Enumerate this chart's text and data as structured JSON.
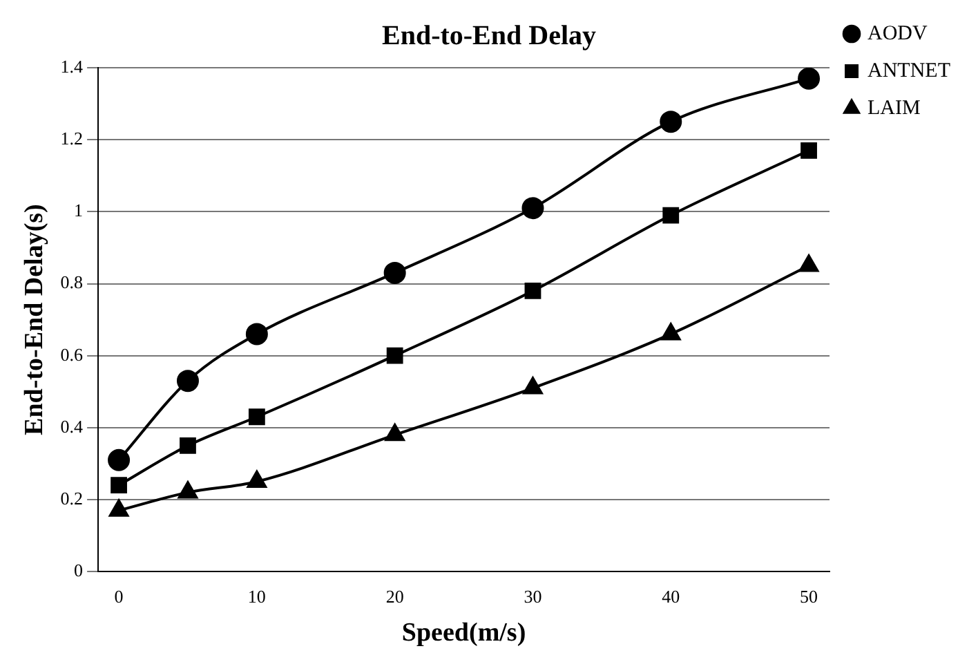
{
  "chart_data": {
    "type": "line",
    "title": "End-to-End Delay",
    "xlabel": "Speed(m/s)",
    "ylabel": "End-to-End Delay(s)",
    "x": [
      0,
      5,
      10,
      20,
      30,
      40,
      50
    ],
    "series": [
      {
        "name": "AODV",
        "color": "#000000",
        "marker": "circle",
        "values": [
          0.31,
          0.53,
          0.66,
          0.83,
          1.01,
          1.25,
          1.37
        ]
      },
      {
        "name": "ANTNET",
        "color": "#000000",
        "marker": "square",
        "values": [
          0.24,
          0.35,
          0.43,
          0.6,
          0.78,
          0.99,
          1.17
        ]
      },
      {
        "name": "LAIM",
        "color": "#000000",
        "marker": "triangle",
        "values": [
          0.17,
          0.22,
          0.25,
          0.38,
          0.51,
          0.66,
          0.85
        ]
      }
    ],
    "xlim": [
      -1.5,
      51.5
    ],
    "xticks": [
      0,
      10,
      20,
      30,
      40,
      50
    ],
    "ylim": [
      0,
      1.4
    ],
    "yticks": [
      0,
      0.2,
      0.4,
      0.6,
      0.8,
      1,
      1.2,
      1.4
    ],
    "grid": "y",
    "legend": "right",
    "line_style": "solid"
  }
}
